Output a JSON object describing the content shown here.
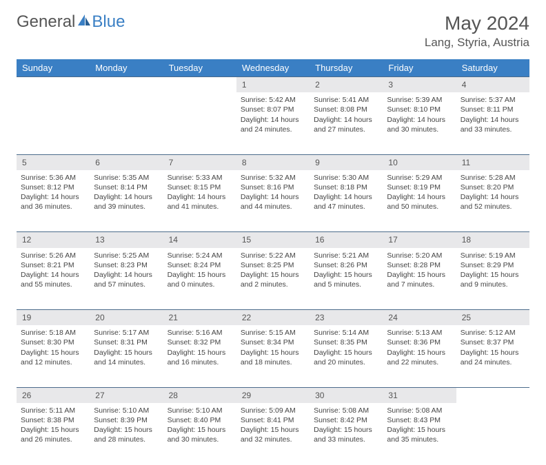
{
  "brand": {
    "part1": "General",
    "part2": "Blue"
  },
  "title": {
    "month": "May 2024",
    "location": "Lang, Styria, Austria"
  },
  "colors": {
    "header_bg": "#3a7fc4",
    "header_fg": "#ffffff",
    "daynum_bg": "#e8e8ea",
    "rule": "#4a6a8a"
  },
  "weekdays": [
    "Sunday",
    "Monday",
    "Tuesday",
    "Wednesday",
    "Thursday",
    "Friday",
    "Saturday"
  ],
  "weeks": [
    {
      "nums": [
        "",
        "",
        "",
        "1",
        "2",
        "3",
        "4"
      ],
      "cells": [
        null,
        null,
        null,
        {
          "sr": "5:42 AM",
          "ss": "8:07 PM",
          "dl": "14 hours and 24 minutes."
        },
        {
          "sr": "5:41 AM",
          "ss": "8:08 PM",
          "dl": "14 hours and 27 minutes."
        },
        {
          "sr": "5:39 AM",
          "ss": "8:10 PM",
          "dl": "14 hours and 30 minutes."
        },
        {
          "sr": "5:37 AM",
          "ss": "8:11 PM",
          "dl": "14 hours and 33 minutes."
        }
      ]
    },
    {
      "nums": [
        "5",
        "6",
        "7",
        "8",
        "9",
        "10",
        "11"
      ],
      "cells": [
        {
          "sr": "5:36 AM",
          "ss": "8:12 PM",
          "dl": "14 hours and 36 minutes."
        },
        {
          "sr": "5:35 AM",
          "ss": "8:14 PM",
          "dl": "14 hours and 39 minutes."
        },
        {
          "sr": "5:33 AM",
          "ss": "8:15 PM",
          "dl": "14 hours and 41 minutes."
        },
        {
          "sr": "5:32 AM",
          "ss": "8:16 PM",
          "dl": "14 hours and 44 minutes."
        },
        {
          "sr": "5:30 AM",
          "ss": "8:18 PM",
          "dl": "14 hours and 47 minutes."
        },
        {
          "sr": "5:29 AM",
          "ss": "8:19 PM",
          "dl": "14 hours and 50 minutes."
        },
        {
          "sr": "5:28 AM",
          "ss": "8:20 PM",
          "dl": "14 hours and 52 minutes."
        }
      ]
    },
    {
      "nums": [
        "12",
        "13",
        "14",
        "15",
        "16",
        "17",
        "18"
      ],
      "cells": [
        {
          "sr": "5:26 AM",
          "ss": "8:21 PM",
          "dl": "14 hours and 55 minutes."
        },
        {
          "sr": "5:25 AM",
          "ss": "8:23 PM",
          "dl": "14 hours and 57 minutes."
        },
        {
          "sr": "5:24 AM",
          "ss": "8:24 PM",
          "dl": "15 hours and 0 minutes."
        },
        {
          "sr": "5:22 AM",
          "ss": "8:25 PM",
          "dl": "15 hours and 2 minutes."
        },
        {
          "sr": "5:21 AM",
          "ss": "8:26 PM",
          "dl": "15 hours and 5 minutes."
        },
        {
          "sr": "5:20 AM",
          "ss": "8:28 PM",
          "dl": "15 hours and 7 minutes."
        },
        {
          "sr": "5:19 AM",
          "ss": "8:29 PM",
          "dl": "15 hours and 9 minutes."
        }
      ]
    },
    {
      "nums": [
        "19",
        "20",
        "21",
        "22",
        "23",
        "24",
        "25"
      ],
      "cells": [
        {
          "sr": "5:18 AM",
          "ss": "8:30 PM",
          "dl": "15 hours and 12 minutes."
        },
        {
          "sr": "5:17 AM",
          "ss": "8:31 PM",
          "dl": "15 hours and 14 minutes."
        },
        {
          "sr": "5:16 AM",
          "ss": "8:32 PM",
          "dl": "15 hours and 16 minutes."
        },
        {
          "sr": "5:15 AM",
          "ss": "8:34 PM",
          "dl": "15 hours and 18 minutes."
        },
        {
          "sr": "5:14 AM",
          "ss": "8:35 PM",
          "dl": "15 hours and 20 minutes."
        },
        {
          "sr": "5:13 AM",
          "ss": "8:36 PM",
          "dl": "15 hours and 22 minutes."
        },
        {
          "sr": "5:12 AM",
          "ss": "8:37 PM",
          "dl": "15 hours and 24 minutes."
        }
      ]
    },
    {
      "nums": [
        "26",
        "27",
        "28",
        "29",
        "30",
        "31",
        ""
      ],
      "cells": [
        {
          "sr": "5:11 AM",
          "ss": "8:38 PM",
          "dl": "15 hours and 26 minutes."
        },
        {
          "sr": "5:10 AM",
          "ss": "8:39 PM",
          "dl": "15 hours and 28 minutes."
        },
        {
          "sr": "5:10 AM",
          "ss": "8:40 PM",
          "dl": "15 hours and 30 minutes."
        },
        {
          "sr": "5:09 AM",
          "ss": "8:41 PM",
          "dl": "15 hours and 32 minutes."
        },
        {
          "sr": "5:08 AM",
          "ss": "8:42 PM",
          "dl": "15 hours and 33 minutes."
        },
        {
          "sr": "5:08 AM",
          "ss": "8:43 PM",
          "dl": "15 hours and 35 minutes."
        },
        null
      ]
    }
  ],
  "labels": {
    "sunrise": "Sunrise: ",
    "sunset": "Sunset: ",
    "daylight": "Daylight: "
  }
}
